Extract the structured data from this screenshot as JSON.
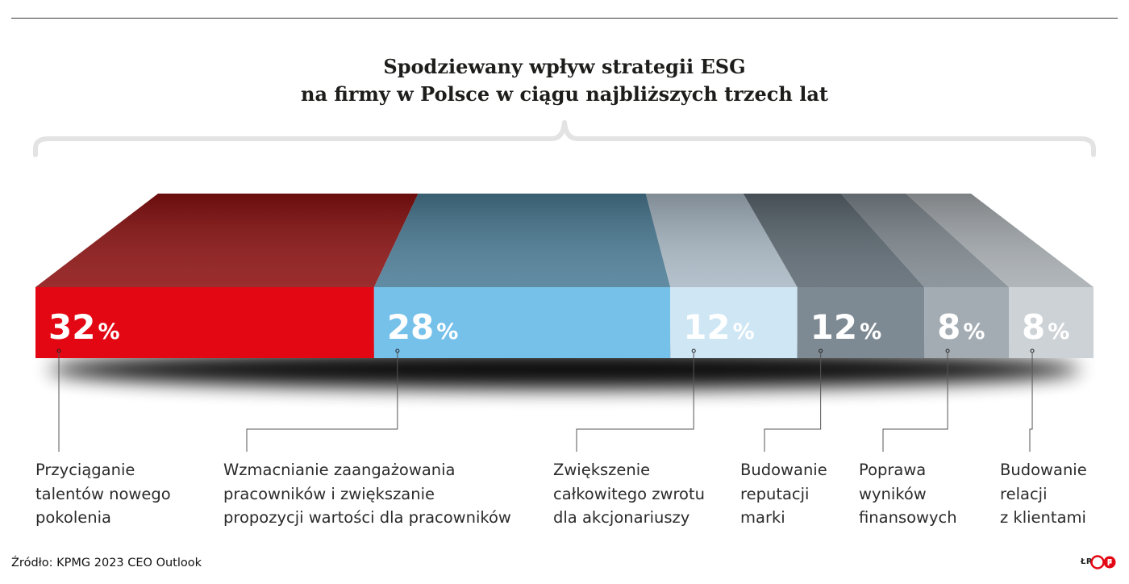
{
  "title": [
    "Spodziewany wpływ strategii ESG",
    "na firmy w Polsce w ciągu najbliższych trzech lat"
  ],
  "chart_data": {
    "type": "bar",
    "orientation": "stacked-horizontal-100",
    "unit": "%",
    "categories": [
      "Przyciąganie talentów nowego pokolenia",
      "Wzmacnianie zaangażowania pracowników i zwiększanie propozycji wartości dla pracowników",
      "Zwiększenie całkowitego zwrotu dla akcjonariuszy",
      "Budowanie reputacji marki",
      "Poprawa wyników finansowych",
      "Budowanie relacji z klientami"
    ],
    "values": [
      32,
      28,
      12,
      12,
      8,
      8
    ],
    "value_labels": [
      "32",
      "28",
      "12",
      "12",
      "8",
      "8"
    ],
    "label_lines": [
      [
        "Przyciąganie",
        "talentów nowego",
        "pokolenia"
      ],
      [
        "Wzmacnianie zaangażowania",
        "pracowników i zwiększanie",
        "propozycji wartości dla pracowników"
      ],
      [
        "Zwiększenie",
        "całkowitego zwrotu",
        "dla akcjonariuszy"
      ],
      [
        "Budowanie",
        "reputacji",
        "marki"
      ],
      [
        "Poprawa",
        "wyników",
        "finansowych"
      ],
      [
        "Budowanie",
        "relacji",
        "z klientami"
      ]
    ],
    "colors": [
      "#e30613",
      "#76c1ea",
      "#cfe6f5",
      "#7d8993",
      "#a3acb3",
      "#cdd2d6"
    ],
    "top_colors": [
      "#8c1010",
      "#4b7c96",
      "#aab9c5",
      "#5c6871",
      "#7f8990",
      "#a6acb0"
    ]
  },
  "source": "Źródło: KPMG 2023 CEO Outlook",
  "credit": "ŁR"
}
